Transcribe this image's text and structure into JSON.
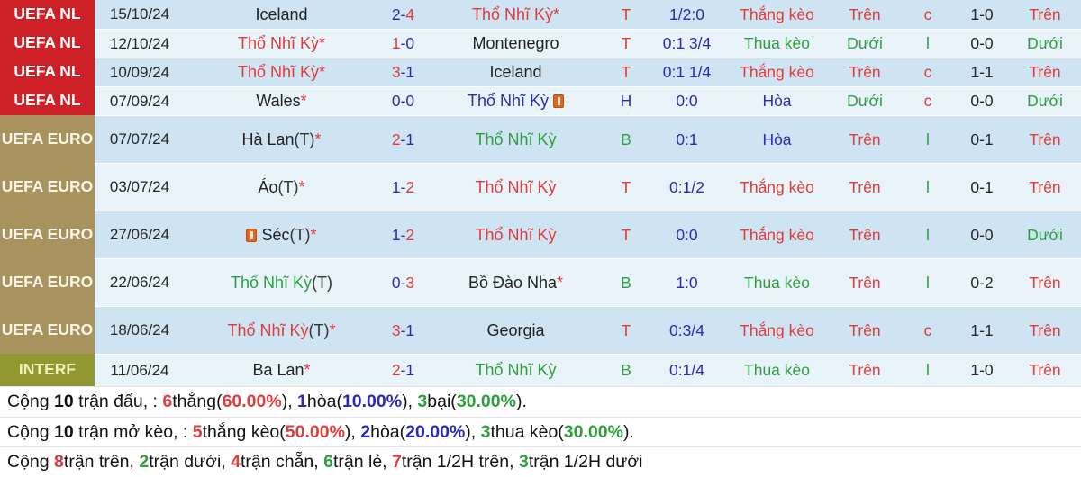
{
  "meta": {
    "dash": "-"
  },
  "colors": {
    "win_red": "#e03c3c",
    "loss_green": "#2f9e3f",
    "draw_navy": "#2a2ab8",
    "label_uefa_nl_bg": "#cd2127",
    "label_uefa_euro_bg": "#a8935f",
    "label_interf_bg": "#939731",
    "row_dark_bg": "#cee4f2",
    "row_light_bg": "#e8f3fa"
  },
  "rows": [
    {
      "g": "nl",
      "comp": "UEFA NL",
      "date": "15/10/24",
      "home_name": "Iceland",
      "home_c": "k",
      "sh": "2",
      "sh_c": "b",
      "sa": "4",
      "sa_c": "r",
      "away_name": "Thổ Nhĩ Kỳ",
      "away_c": "r",
      "away_star": "*",
      "res": "T",
      "res_c": "r",
      "odds": "1/2:0",
      "keo": "Thắng kèo",
      "keo_c": "r",
      "ou1": "Trên",
      "ou1_c": "r",
      "cl": "c",
      "cl_c": "r",
      "ht": "1-0",
      "ou2": "Trên",
      "ou2_c": "r"
    },
    {
      "g": "nl",
      "comp": "UEFA NL",
      "date": "12/10/24",
      "home_name": "Thổ Nhĩ Kỳ",
      "home_c": "r",
      "home_star": "*",
      "sh": "1",
      "sh_c": "r",
      "sa": "0",
      "sa_c": "b",
      "away_name": "Montenegro",
      "away_c": "k",
      "res": "T",
      "res_c": "r",
      "odds": "0:1 3/4",
      "keo": "Thua kèo",
      "keo_c": "g",
      "ou1": "Dưới",
      "ou1_c": "g",
      "cl": "l",
      "cl_c": "g",
      "ht": "0-0",
      "ou2": "Dưới",
      "ou2_c": "g"
    },
    {
      "g": "nl",
      "comp": "UEFA NL",
      "date": "10/09/24",
      "home_name": "Thổ Nhĩ Kỳ",
      "home_c": "r",
      "home_star": "*",
      "sh": "3",
      "sh_c": "r",
      "sa": "1",
      "sa_c": "b",
      "away_name": "Iceland",
      "away_c": "k",
      "res": "T",
      "res_c": "r",
      "odds": "0:1 1/4",
      "keo": "Thắng kèo",
      "keo_c": "r",
      "ou1": "Trên",
      "ou1_c": "r",
      "cl": "c",
      "cl_c": "r",
      "ht": "1-1",
      "ou2": "Trên",
      "ou2_c": "r"
    },
    {
      "g": "nl",
      "comp": "UEFA NL",
      "date": "07/09/24",
      "home_name": "Wales",
      "home_c": "k",
      "home_star": "*",
      "sh": "0",
      "sh_c": "b",
      "sa": "0",
      "sa_c": "b",
      "away_name": "Thổ Nhĩ Kỳ",
      "away_c": "b",
      "away_card_post": "1",
      "res": "H",
      "res_c": "b",
      "odds": "0:0",
      "keo": "Hòa",
      "keo_c": "b",
      "ou1": "Dưới",
      "ou1_c": "g",
      "cl": "c",
      "cl_c": "r",
      "ht": "0-0",
      "ou2": "Dưới",
      "ou2_c": "g"
    },
    {
      "g": "euro",
      "comp": "UEFA EURO",
      "date": "07/07/24",
      "home_name": "Hà Lan",
      "home_c": "k",
      "home_suffix": "(T)",
      "home_star": "*",
      "sh": "2",
      "sh_c": "r",
      "sa": "1",
      "sa_c": "b",
      "away_name": "Thổ Nhĩ Kỳ",
      "away_c": "g",
      "res": "B",
      "res_c": "g",
      "odds": "0:1",
      "keo": "Hòa",
      "keo_c": "b",
      "ou1": "Trên",
      "ou1_c": "r",
      "cl": "l",
      "cl_c": "g",
      "ht": "0-1",
      "ou2": "Trên",
      "ou2_c": "r"
    },
    {
      "g": "euro",
      "comp": "UEFA EURO",
      "date": "03/07/24",
      "home_name": "Áo",
      "home_c": "k",
      "home_suffix": "(T)",
      "home_star": "*",
      "sh": "1",
      "sh_c": "b",
      "sa": "2",
      "sa_c": "r",
      "away_name": "Thổ Nhĩ Kỳ",
      "away_c": "r",
      "res": "T",
      "res_c": "r",
      "odds": "0:1/2",
      "keo": "Thắng kèo",
      "keo_c": "r",
      "ou1": "Trên",
      "ou1_c": "r",
      "cl": "l",
      "cl_c": "g",
      "ht": "0-1",
      "ou2": "Trên",
      "ou2_c": "r"
    },
    {
      "g": "euro",
      "comp": "UEFA EURO",
      "date": "27/06/24",
      "home_name": "Séc",
      "home_c": "k",
      "home_suffix": "(T)",
      "home_star": "*",
      "home_card_pre": "1",
      "sh": "1",
      "sh_c": "b",
      "sa": "2",
      "sa_c": "r",
      "away_name": "Thổ Nhĩ Kỳ",
      "away_c": "r",
      "res": "T",
      "res_c": "r",
      "odds": "0:0",
      "keo": "Thắng kèo",
      "keo_c": "r",
      "ou1": "Trên",
      "ou1_c": "r",
      "cl": "l",
      "cl_c": "g",
      "ht": "0-0",
      "ou2": "Dưới",
      "ou2_c": "g"
    },
    {
      "g": "euro",
      "comp": "UEFA EURO",
      "date": "22/06/24",
      "home_name": "Thổ Nhĩ Kỳ",
      "home_c": "g",
      "home_suffix": "(T)",
      "sh": "0",
      "sh_c": "b",
      "sa": "3",
      "sa_c": "r",
      "away_name": "Bồ Đào Nha",
      "away_c": "k",
      "away_star": "*",
      "res": "B",
      "res_c": "g",
      "odds": "1:0",
      "keo": "Thua kèo",
      "keo_c": "g",
      "ou1": "Trên",
      "ou1_c": "r",
      "cl": "l",
      "cl_c": "g",
      "ht": "0-2",
      "ou2": "Trên",
      "ou2_c": "r"
    },
    {
      "g": "euro",
      "comp": "UEFA EURO",
      "date": "18/06/24",
      "home_name": "Thổ Nhĩ Kỳ",
      "home_c": "r",
      "home_suffix": "(T)",
      "home_star": "*",
      "sh": "3",
      "sh_c": "r",
      "sa": "1",
      "sa_c": "b",
      "away_name": "Georgia",
      "away_c": "k",
      "res": "T",
      "res_c": "r",
      "odds": "0:3/4",
      "keo": "Thắng kèo",
      "keo_c": "r",
      "ou1": "Trên",
      "ou1_c": "r",
      "cl": "c",
      "cl_c": "r",
      "ht": "1-1",
      "ou2": "Trên",
      "ou2_c": "r"
    },
    {
      "g": "interf",
      "comp": "INTERF",
      "date": "11/06/24",
      "home_name": "Ba Lan",
      "home_c": "k",
      "home_star": "*",
      "sh": "2",
      "sh_c": "r",
      "sa": "1",
      "sa_c": "b",
      "away_name": "Thổ Nhĩ Kỳ",
      "away_c": "g",
      "res": "B",
      "res_c": "g",
      "odds": "0:1/4",
      "keo": "Thua kèo",
      "keo_c": "g",
      "ou1": "Trên",
      "ou1_c": "r",
      "cl": "l",
      "cl_c": "g",
      "ht": "1-0",
      "ou2": "Trên",
      "ou2_c": "r"
    }
  ],
  "summary": {
    "line1": [
      {
        "t": "Cộng "
      },
      {
        "t": "10",
        "b": 1
      },
      {
        "t": " trận đấu, : "
      },
      {
        "t": "6",
        "c": "r",
        "b": 1
      },
      {
        "t": "thắng("
      },
      {
        "t": "60.00%",
        "c": "r",
        "b": 1
      },
      {
        "t": "), "
      },
      {
        "t": "1",
        "c": "b",
        "b": 1
      },
      {
        "t": "hòa("
      },
      {
        "t": "10.00%",
        "c": "b",
        "b": 1
      },
      {
        "t": "), "
      },
      {
        "t": "3",
        "c": "g",
        "b": 1
      },
      {
        "t": "bại("
      },
      {
        "t": "30.00%",
        "c": "g",
        "b": 1
      },
      {
        "t": ")."
      }
    ],
    "line2": [
      {
        "t": "Cộng "
      },
      {
        "t": "10",
        "b": 1
      },
      {
        "t": " trận mở kèo, : "
      },
      {
        "t": "5",
        "c": "r",
        "b": 1
      },
      {
        "t": "thắng kèo("
      },
      {
        "t": "50.00%",
        "c": "r",
        "b": 1
      },
      {
        "t": "), "
      },
      {
        "t": "2",
        "c": "b",
        "b": 1
      },
      {
        "t": "hòa("
      },
      {
        "t": "20.00%",
        "c": "b",
        "b": 1
      },
      {
        "t": "), "
      },
      {
        "t": "3",
        "c": "g",
        "b": 1
      },
      {
        "t": "thua kèo("
      },
      {
        "t": "30.00%",
        "c": "g",
        "b": 1
      },
      {
        "t": ")."
      }
    ],
    "line3": [
      {
        "t": "Cộng "
      },
      {
        "t": "8",
        "c": "r",
        "b": 1
      },
      {
        "t": "trận trên, "
      },
      {
        "t": "2",
        "c": "g",
        "b": 1
      },
      {
        "t": "trận dưới, "
      },
      {
        "t": "4",
        "c": "r",
        "b": 1
      },
      {
        "t": "trận chẵn, "
      },
      {
        "t": "6",
        "c": "g",
        "b": 1
      },
      {
        "t": "trận lẻ, "
      },
      {
        "t": "7",
        "c": "r",
        "b": 1
      },
      {
        "t": "trận 1/2H trên, "
      },
      {
        "t": "3",
        "c": "g",
        "b": 1
      },
      {
        "t": "trận 1/2H dưới"
      }
    ]
  }
}
